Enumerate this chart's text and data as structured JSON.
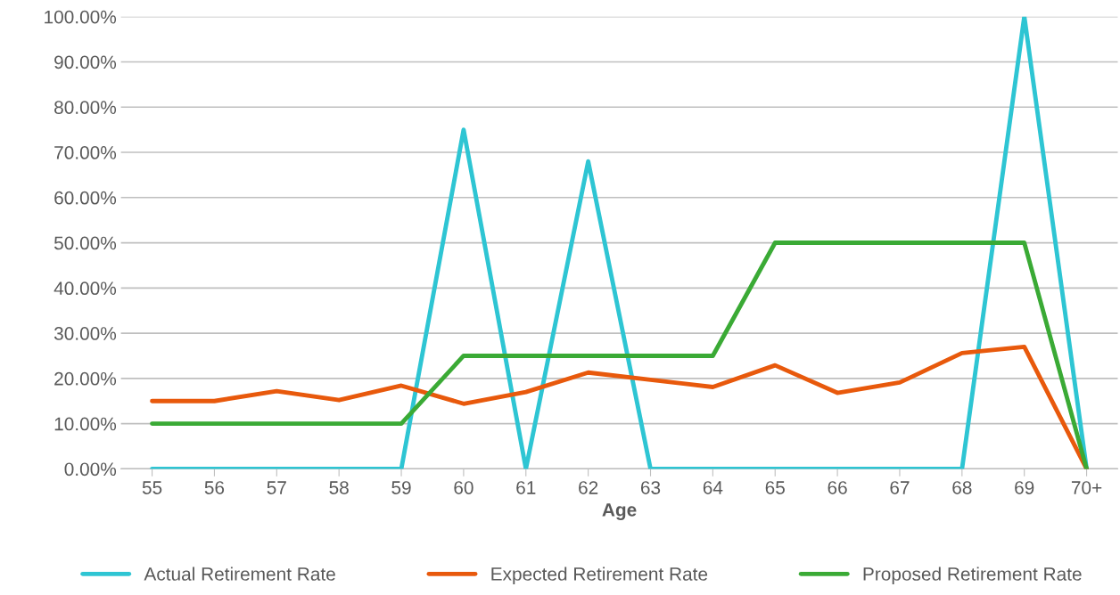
{
  "chart_data": {
    "type": "line",
    "xlabel": "Age",
    "categories": [
      "55",
      "56",
      "57",
      "58",
      "59",
      "60",
      "61",
      "62",
      "63",
      "64",
      "65",
      "66",
      "67",
      "68",
      "69",
      "70+"
    ],
    "series": [
      {
        "name": "Actual Retirement Rate",
        "color": "#2ec5d3",
        "values": [
          0,
          0,
          0,
          0,
          0,
          75,
          0,
          68,
          0,
          0,
          0,
          0,
          0,
          0,
          100,
          0
        ]
      },
      {
        "name": "Expected Retirement Rate",
        "color": "#e8590c",
        "values": [
          15,
          15,
          17.2,
          15.2,
          18.4,
          14.4,
          17,
          21.3,
          19.7,
          18.1,
          22.9,
          16.8,
          19.1,
          25.6,
          27,
          0
        ]
      },
      {
        "name": "Proposed Retirement Rate",
        "color": "#3aaa35",
        "values": [
          10,
          10,
          10,
          10,
          10,
          25,
          25,
          25,
          25,
          25,
          50,
          50,
          50,
          50,
          50,
          0
        ]
      }
    ],
    "ylim": [
      0,
      100
    ],
    "yticks": [
      {
        "value": 0,
        "label": "0.00%"
      },
      {
        "value": 10,
        "label": "10.00%"
      },
      {
        "value": 20,
        "label": "20.00%"
      },
      {
        "value": 30,
        "label": "30.00%"
      },
      {
        "value": 40,
        "label": "40.00%"
      },
      {
        "value": 50,
        "label": "50.00%"
      },
      {
        "value": 60,
        "label": "60.00%"
      },
      {
        "value": 70,
        "label": "70.00%"
      },
      {
        "value": 80,
        "label": "80.00%"
      },
      {
        "value": 90,
        "label": "90.00%"
      },
      {
        "value": 100,
        "label": "100.00%"
      }
    ],
    "grid": "y",
    "legend": "bottom",
    "marker": "none",
    "line_style": "solid"
  }
}
